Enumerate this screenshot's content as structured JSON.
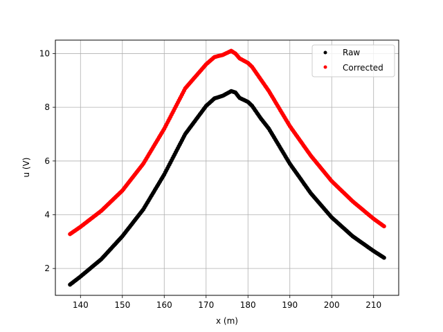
{
  "chart_data": {
    "type": "scatter",
    "title": "",
    "xlabel": "x (m)",
    "ylabel": "u (V)",
    "xlim": [
      134,
      216
    ],
    "ylim": [
      1.0,
      10.5
    ],
    "xticks": [
      140,
      150,
      160,
      170,
      180,
      190,
      200,
      210
    ],
    "yticks": [
      2,
      4,
      6,
      8,
      10
    ],
    "grid": true,
    "legend": {
      "position": "top-right"
    },
    "series": [
      {
        "name": "Raw",
        "color": "#000000",
        "points": [
          [
            137.5,
            1.4
          ],
          [
            140,
            1.7
          ],
          [
            145,
            2.35
          ],
          [
            150,
            3.2
          ],
          [
            155,
            4.2
          ],
          [
            160,
            5.5
          ],
          [
            165,
            7.0
          ],
          [
            170,
            8.05
          ],
          [
            172,
            8.33
          ],
          [
            174,
            8.43
          ],
          [
            176,
            8.6
          ],
          [
            177,
            8.55
          ],
          [
            178,
            8.35
          ],
          [
            180,
            8.2
          ],
          [
            181,
            8.05
          ],
          [
            183,
            7.6
          ],
          [
            185,
            7.2
          ],
          [
            190,
            5.9
          ],
          [
            195,
            4.8
          ],
          [
            200,
            3.9
          ],
          [
            205,
            3.2
          ],
          [
            210,
            2.65
          ],
          [
            212.5,
            2.4
          ]
        ]
      },
      {
        "name": "Corrected",
        "color": "#ff0000",
        "points": [
          [
            137.5,
            3.28
          ],
          [
            140,
            3.55
          ],
          [
            145,
            4.15
          ],
          [
            150,
            4.9
          ],
          [
            155,
            5.9
          ],
          [
            160,
            7.2
          ],
          [
            165,
            8.7
          ],
          [
            170,
            9.6
          ],
          [
            172,
            9.87
          ],
          [
            174,
            9.95
          ],
          [
            176,
            10.1
          ],
          [
            177,
            10.0
          ],
          [
            178,
            9.82
          ],
          [
            180,
            9.65
          ],
          [
            181,
            9.5
          ],
          [
            183,
            9.05
          ],
          [
            185,
            8.6
          ],
          [
            190,
            7.3
          ],
          [
            195,
            6.2
          ],
          [
            200,
            5.25
          ],
          [
            205,
            4.5
          ],
          [
            210,
            3.85
          ],
          [
            212.5,
            3.57
          ]
        ]
      }
    ]
  }
}
